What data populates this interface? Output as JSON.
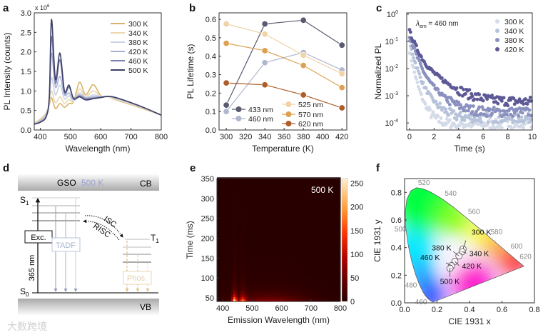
{
  "panel_letters": [
    "a",
    "b",
    "c",
    "d",
    "e",
    "f"
  ],
  "watermark": "大数跨境",
  "chart_data": [
    {
      "id": "a",
      "type": "line",
      "xlabel": "Wavelength (nm)",
      "ylabel": "PL Intensity (counts)",
      "y_multiplier": "x 10",
      "y_multiplier_exp": "6",
      "xlim": [
        380,
        800
      ],
      "ylim": [
        0,
        3.0
      ],
      "xticks": [
        400,
        500,
        600,
        700,
        800
      ],
      "yticks": [
        0.0,
        0.5,
        1.0,
        1.5,
        2.0,
        2.5,
        3.0
      ],
      "legend_position": "top-right",
      "x": [
        380,
        400,
        420,
        430,
        437,
        450,
        465,
        480,
        495,
        510,
        530,
        550,
        575,
        600,
        625,
        650,
        700,
        750,
        800
      ],
      "series": [
        {
          "name": "300 K",
          "color": "#d9b36a",
          "values": [
            0.18,
            0.27,
            0.45,
            0.65,
            0.83,
            0.55,
            0.68,
            0.58,
            0.68,
            0.72,
            1.22,
            0.9,
            1.16,
            0.88,
            0.85,
            0.77,
            0.65,
            0.52,
            0.38
          ]
        },
        {
          "name": "340 K",
          "color": "#ecd7b0",
          "values": [
            0.18,
            0.25,
            0.45,
            0.7,
            1.0,
            0.7,
            0.85,
            0.68,
            0.78,
            0.72,
            1.05,
            0.85,
            1.0,
            0.87,
            0.85,
            0.78,
            0.66,
            0.53,
            0.38
          ]
        },
        {
          "name": "380 K",
          "color": "#c9d3e2",
          "values": [
            0.17,
            0.24,
            0.4,
            0.75,
            1.35,
            0.9,
            1.15,
            0.8,
            0.88,
            0.74,
            0.95,
            0.83,
            0.9,
            0.86,
            0.86,
            0.8,
            0.68,
            0.54,
            0.38
          ]
        },
        {
          "name": "420 K",
          "color": "#a8b2d2",
          "values": [
            0.16,
            0.22,
            0.4,
            0.8,
            1.97,
            1.1,
            1.37,
            0.9,
            0.95,
            0.78,
            0.9,
            0.82,
            0.85,
            0.85,
            0.86,
            0.82,
            0.7,
            0.55,
            0.38
          ]
        },
        {
          "name": "460 K",
          "color": "#7a7fb0",
          "values": [
            0.15,
            0.2,
            0.35,
            0.85,
            2.4,
            1.2,
            1.8,
            0.95,
            1.1,
            0.82,
            0.87,
            0.8,
            0.82,
            0.84,
            0.86,
            0.83,
            0.7,
            0.55,
            0.38
          ]
        },
        {
          "name": "500 K",
          "color": "#3e3f66",
          "values": [
            0.15,
            0.2,
            0.35,
            0.9,
            2.83,
            1.3,
            1.97,
            1.0,
            1.15,
            0.8,
            0.85,
            0.77,
            0.8,
            0.83,
            0.86,
            0.83,
            0.7,
            0.55,
            0.38
          ]
        }
      ]
    },
    {
      "id": "b",
      "type": "line",
      "xlabel": "Temperature (K)",
      "ylabel": "PL Lifetime (s)",
      "xlim": [
        292.5,
        425
      ],
      "ylim": [
        0,
        0.635
      ],
      "xticks": [
        300,
        320,
        340,
        360,
        380,
        400,
        420
      ],
      "yticks": [
        0.0,
        0.1,
        0.2,
        0.3,
        0.4,
        0.5,
        0.6
      ],
      "legend_position": "bottom",
      "x": [
        300,
        340,
        380,
        420
      ],
      "series": [
        {
          "name": "433 nm",
          "color": "#5a5b70",
          "values": [
            0.135,
            0.575,
            0.595,
            0.46
          ]
        },
        {
          "name": "460 nm",
          "color": "#b0b8cf",
          "values": [
            0.1,
            0.365,
            0.42,
            0.325
          ]
        },
        {
          "name": "525 nm",
          "color": "#f0d3a8",
          "values": [
            0.575,
            0.52,
            0.405,
            0.305
          ]
        },
        {
          "name": "570 nm",
          "color": "#dea152",
          "values": [
            0.47,
            0.43,
            0.35,
            0.23
          ]
        },
        {
          "name": "620 nm",
          "color": "#ae5e2a",
          "values": [
            0.255,
            0.245,
            0.19,
            0.12
          ]
        }
      ]
    },
    {
      "id": "c",
      "type": "scatter",
      "xlabel": "Time (s)",
      "ylabel": "Normalized PL",
      "annotation": "λ",
      "annotation_sub": "em",
      "annotation_rest": " = 460 nm",
      "xlim": [
        -0.23,
        10
      ],
      "ylim_log10": [
        -4.26,
        0.05
      ],
      "xticks": [
        0,
        2,
        4,
        6,
        8,
        10
      ],
      "ytick_exponents": [
        "0",
        "-1",
        "-2",
        "-3",
        "-4"
      ],
      "ytick_base": "10",
      "legend_position": "top-right",
      "model": "a1*exp(-t/tau1) + a2*exp(-t/tau2) + floor",
      "series": [
        {
          "name": "300 K",
          "color": "#d3dbe8",
          "a1": 0.04,
          "tau1": 0.2,
          "a2": 0.004,
          "tau2": 0.5,
          "floor": 9e-05
        },
        {
          "name": "340 K",
          "color": "#b6c2da",
          "a1": 0.08,
          "tau1": 0.25,
          "a2": 0.008,
          "tau2": 0.7,
          "floor": 0.00015
        },
        {
          "name": "380 K",
          "color": "#8a90bf",
          "a1": 0.15,
          "tau1": 0.3,
          "a2": 0.015,
          "tau2": 0.9,
          "floor": 0.00025
        },
        {
          "name": "420 K",
          "color": "#5d5996",
          "a1": 0.2,
          "tau1": 0.35,
          "a2": 0.03,
          "tau2": 1.2,
          "floor": 0.0006
        }
      ]
    },
    {
      "id": "e",
      "type": "heatmap",
      "xlabel": "Emission Wavelength (nm)",
      "ylabel": "Time (ms)",
      "annotation": "500 K",
      "xlim": [
        380,
        800
      ],
      "ylim": [
        41,
        350
      ],
      "xticks": [
        400,
        500,
        600,
        700,
        800
      ],
      "yticks": [
        50,
        100,
        150,
        200,
        250,
        300,
        350
      ],
      "colorbar": {
        "range": [
          0,
          260
        ],
        "ticks": [
          0,
          50,
          100,
          150,
          200,
          250
        ]
      },
      "model": "sum amp*exp(-((λ-center)/width)^2/2)*exp(-(t-41)/tau)",
      "components": [
        {
          "center": 440,
          "width": 6,
          "amp": 250,
          "tau": 12
        },
        {
          "center": 468,
          "width": 8,
          "amp": 160,
          "tau": 12
        },
        {
          "center": 560,
          "width": 90,
          "amp": 70,
          "tau": 14
        },
        {
          "center": 440,
          "width": 5,
          "amp": 25,
          "tau": 90
        },
        {
          "center": 468,
          "width": 6,
          "amp": 15,
          "tau": 90
        },
        {
          "center": 550,
          "width": 100,
          "amp": 8,
          "tau": 60
        }
      ]
    },
    {
      "id": "f",
      "type": "scatter",
      "xlabel": "CIE 1931 x",
      "ylabel": "CIE 1931 y",
      "xlim": [
        0,
        0.8
      ],
      "ylim": [
        0,
        0.9
      ],
      "xticks": [
        0.0,
        0.2,
        0.4,
        0.6,
        0.8
      ],
      "yticks": [
        0.0,
        0.2,
        0.4,
        0.6,
        0.8
      ],
      "spectral_locus": [
        [
          0.174,
          0.005
        ],
        [
          0.157,
          0.018
        ],
        [
          0.144,
          0.03
        ],
        [
          0.124,
          0.058
        ],
        [
          0.11,
          0.087
        ],
        [
          0.091,
          0.133
        ],
        [
          0.069,
          0.201
        ],
        [
          0.045,
          0.295
        ],
        [
          0.023,
          0.413
        ],
        [
          0.008,
          0.538
        ],
        [
          0.004,
          0.655
        ],
        [
          0.014,
          0.75
        ],
        [
          0.039,
          0.812
        ],
        [
          0.074,
          0.834
        ],
        [
          0.114,
          0.826
        ],
        [
          0.155,
          0.806
        ],
        [
          0.23,
          0.754
        ],
        [
          0.302,
          0.692
        ],
        [
          0.373,
          0.624
        ],
        [
          0.444,
          0.555
        ],
        [
          0.512,
          0.487
        ],
        [
          0.575,
          0.424
        ],
        [
          0.627,
          0.372
        ],
        [
          0.691,
          0.308
        ],
        [
          0.719,
          0.281
        ],
        [
          0.735,
          0.265
        ]
      ],
      "wavelength_labels": [
        {
          "label": "520",
          "x": 0.074,
          "y": 0.834
        },
        {
          "label": "540",
          "x": 0.23,
          "y": 0.754
        },
        {
          "label": "560",
          "x": 0.373,
          "y": 0.624
        },
        {
          "label": "580",
          "x": 0.512,
          "y": 0.487
        },
        {
          "label": "600",
          "x": 0.627,
          "y": 0.372
        },
        {
          "label": "620",
          "x": 0.691,
          "y": 0.308
        },
        {
          "label": "500",
          "x": 0.008,
          "y": 0.538
        },
        {
          "label": "480",
          "x": 0.091,
          "y": 0.133
        },
        {
          "label": "460",
          "x": 0.144,
          "y": 0.03
        }
      ],
      "points": [
        {
          "name": "300 K",
          "x": 0.36,
          "y": 0.39
        },
        {
          "name": "340 K",
          "x": 0.355,
          "y": 0.37
        },
        {
          "name": "380 K",
          "x": 0.335,
          "y": 0.34
        },
        {
          "name": "420 K",
          "x": 0.31,
          "y": 0.3
        },
        {
          "name": "460 K",
          "x": 0.29,
          "y": 0.27
        },
        {
          "name": "500 K",
          "x": 0.28,
          "y": 0.25
        }
      ]
    }
  ],
  "diagram_d": {
    "material": "GSO",
    "temperature": "500 K",
    "temperature_color": "#9aa3d6",
    "cb": "CB",
    "vb": "VB",
    "s1": "S",
    "s1_sub": "1",
    "s0": "S",
    "s0_sub": "0",
    "t1": "T",
    "t1_sub": "1",
    "excitation": "Exc.",
    "excitation_wavelength": "365 nm",
    "tadf": "TADF",
    "isc": "ISC",
    "risc": "RISC",
    "phos": "Phos."
  }
}
